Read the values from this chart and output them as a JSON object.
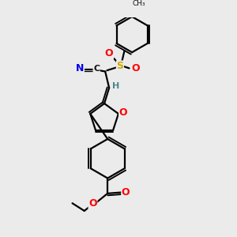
{
  "bg_color": "#ebebeb",
  "bond_color": "#000000",
  "bond_width": 1.6,
  "atom_colors": {
    "N": "#0000ee",
    "O": "#ff0000",
    "S": "#ccaa00",
    "H": "#4a8888",
    "C": "#111111"
  }
}
